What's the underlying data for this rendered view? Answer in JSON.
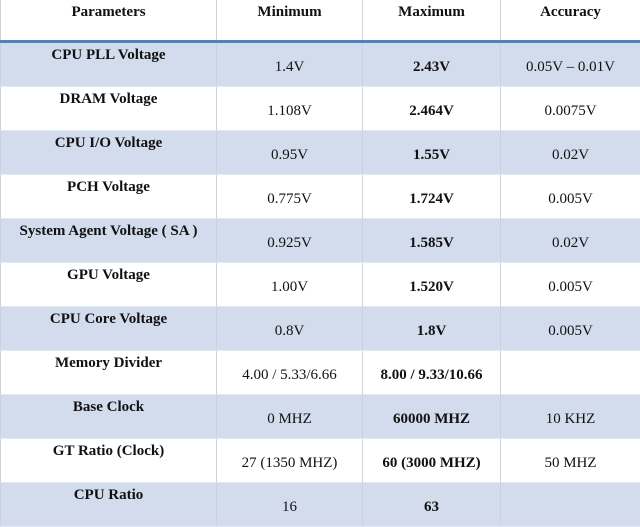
{
  "table": {
    "header": [
      "Parameters",
      "Minimum",
      "Maximum",
      "Accuracy"
    ],
    "rows": [
      [
        "CPU PLL Voltage",
        "1.4V",
        "2.43V",
        "0.05V – 0.01V"
      ],
      [
        "DRAM Voltage",
        "1.108V",
        "2.464V",
        "0.0075V"
      ],
      [
        "CPU I/O Voltage",
        "0.95V",
        "1.55V",
        "0.02V"
      ],
      [
        "PCH Voltage",
        "0.775V",
        "1.724V",
        "0.005V"
      ],
      [
        "System Agent Voltage ( SA )",
        "0.925V",
        "1.585V",
        "0.02V"
      ],
      [
        "GPU Voltage",
        "1.00V",
        "1.520V",
        "0.005V"
      ],
      [
        "CPU Core Voltage",
        "0.8V",
        "1.8V",
        "0.005V"
      ],
      [
        "Memory Divider",
        "4.00 / 5.33/6.66",
        "8.00 / 9.33/10.66",
        null
      ],
      [
        "Base Clock",
        "0 MHZ",
        "60000 MHZ",
        "10 KHZ"
      ],
      [
        "GT Ratio (Clock)",
        "27 (1350 MHZ)",
        "60 (3000 MHZ)",
        "50 MHZ"
      ],
      [
        "CPU Ratio",
        "16",
        "63",
        null
      ]
    ]
  }
}
